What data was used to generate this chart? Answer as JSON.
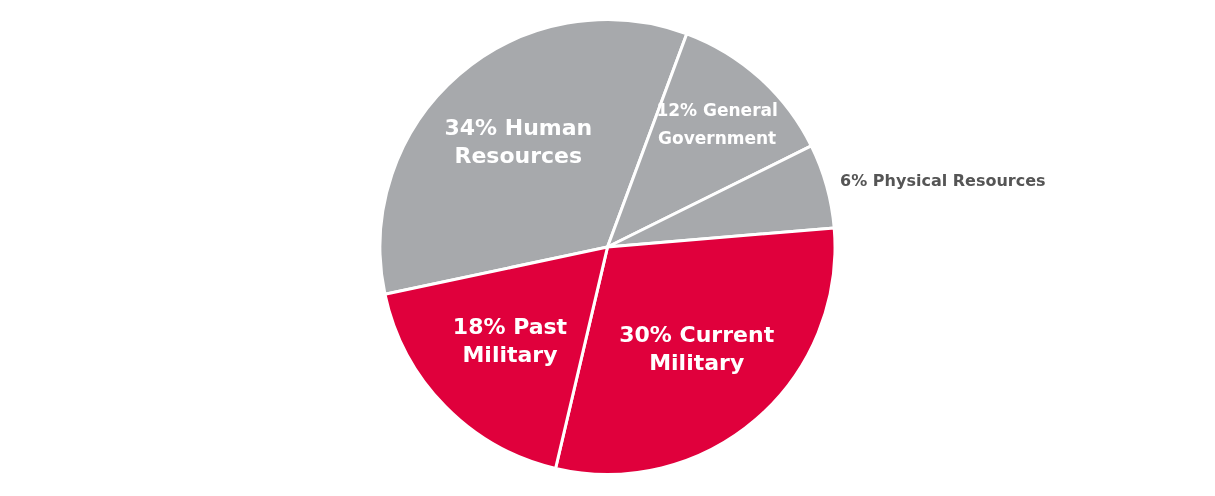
{
  "chart_data": {
    "type": "pie",
    "categories": [
      "Human Resources",
      "General Government",
      "Physical Resources",
      "Current Military",
      "Past Military"
    ],
    "values": [
      34,
      12,
      6,
      30,
      18
    ],
    "value_labels": [
      "34%",
      "12%",
      "6%",
      "30%",
      "18%"
    ],
    "colors": [
      "#a7a9ac",
      "#a7a9ac",
      "#a7a9ac",
      "#e0003c",
      "#e0003c"
    ],
    "legend": false
  }
}
